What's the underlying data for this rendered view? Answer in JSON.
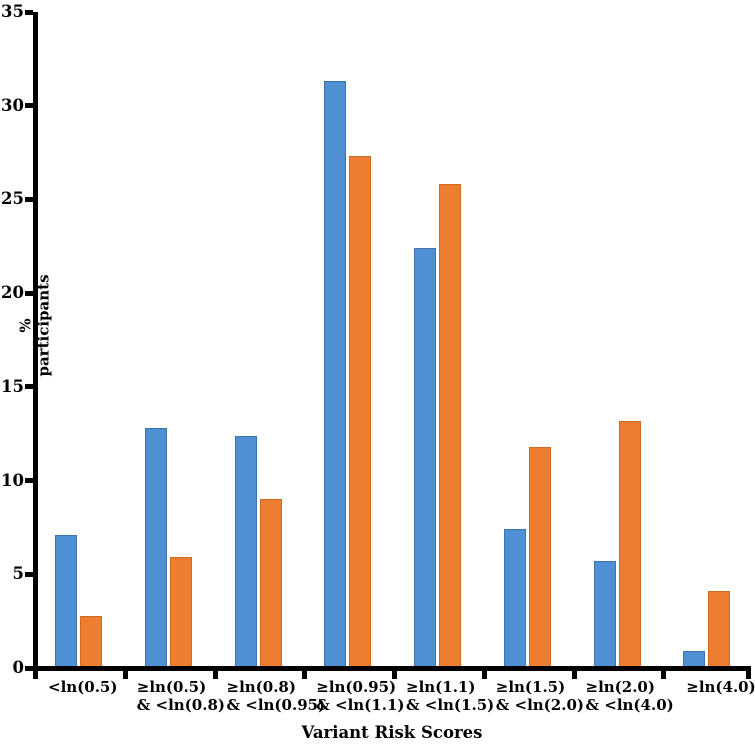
{
  "chart_data": {
    "type": "bar",
    "title": "",
    "xlabel": "Variant Risk Scores",
    "ylabel": "% participants",
    "ylim": [
      0,
      35
    ],
    "yticks": [
      0,
      5,
      10,
      15,
      20,
      25,
      30,
      35
    ],
    "grid": false,
    "legend_position": "none",
    "categories": [
      "<ln(0.5)",
      "≥ln(0.5) & <ln(0.8)",
      "≥ln(0.8) & <ln(0.95)",
      "≥ln(0.95) & <ln(1.1)",
      "≥ln(1.1) & <ln(1.5)",
      "≥ln(1.5) & <ln(2.0)",
      "≥ln(2.0) & <ln(4.0)",
      "≥ln(4.0)"
    ],
    "category_label_lines": [
      [
        "<ln(0.5)"
      ],
      [
        "≥ln(0.5)",
        "& <ln(0.8)"
      ],
      [
        "≥ln(0.8)",
        "& <ln(0.95)"
      ],
      [
        "≥ln(0.95)",
        "& <ln(1.1)"
      ],
      [
        "≥ln(1.1)",
        "& <ln(1.5)"
      ],
      [
        "≥ln(1.5)",
        "& <ln(2.0)"
      ],
      [
        "≥ln(2.0)",
        "& <ln(4.0)"
      ],
      [
        "≥ln(4.0)"
      ]
    ],
    "series": [
      {
        "name": "blue-series",
        "color": "#4F8FD3",
        "border_color": "#3D74AC",
        "values": [
          7.1,
          12.8,
          12.4,
          31.3,
          22.4,
          7.4,
          5.7,
          0.9
        ]
      },
      {
        "name": "orange-series",
        "color": "#ED7D31",
        "border_color": "#CE6A21",
        "values": [
          2.8,
          5.9,
          9.0,
          27.3,
          25.8,
          11.8,
          13.2,
          4.1
        ]
      }
    ],
    "axis_color": "#000000"
  }
}
